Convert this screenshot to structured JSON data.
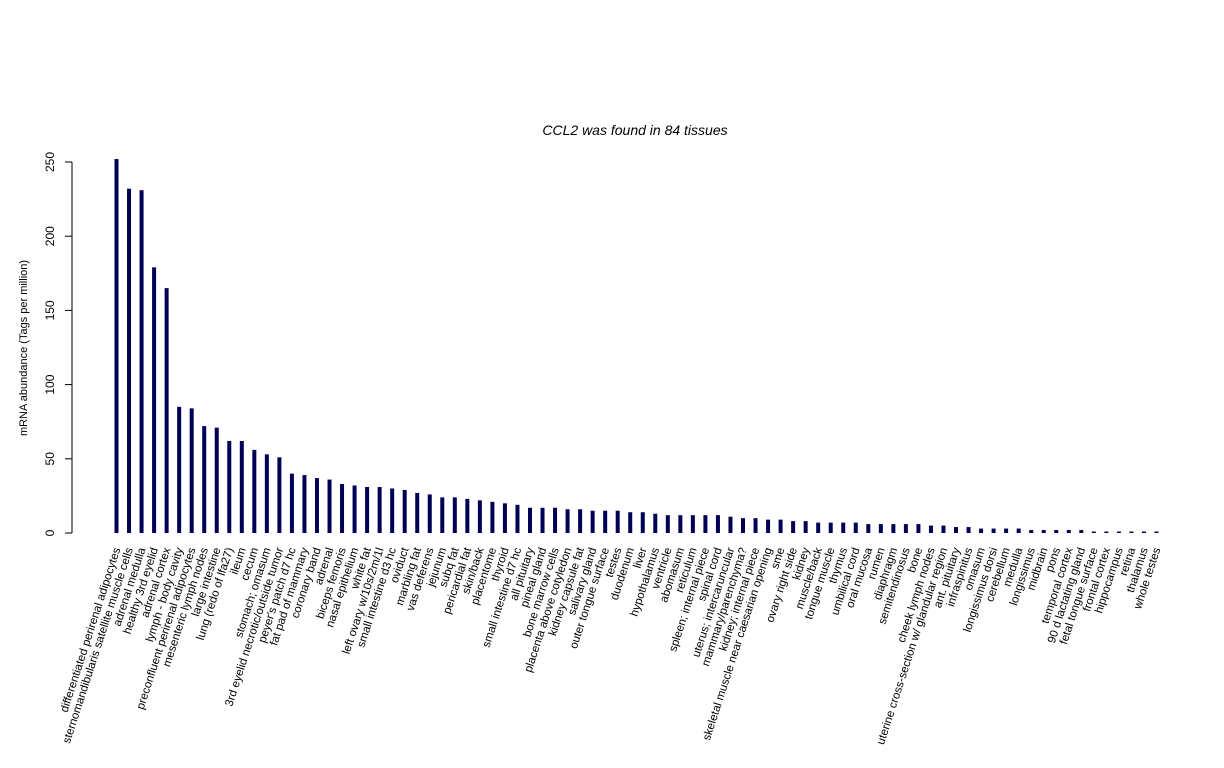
{
  "chart_data": {
    "type": "bar",
    "title": "CCL2  was found in  84  tissues",
    "xlabel": "",
    "ylabel": "mRNA abundance (Tags per million)",
    "ylim": [
      0,
      250
    ],
    "yticks": [
      0,
      50,
      100,
      150,
      200,
      250
    ],
    "grid": false,
    "legend": "none",
    "bar_color": "#000055",
    "categories": [
      "differentiated perirenal adipocytes",
      "sternomandibularis satellite muscle cells",
      "adrenal medulla",
      "healthy 3rd eyelid",
      "adrenal cortex",
      "lymph - body cavity",
      "preconfluent perirenal adipocytes",
      "mesenteric lymph nodes",
      "large intestine",
      "lung (redo of lfa27)",
      "ileum",
      "cecum",
      "stomach; omasum",
      "3rd eyelid necrotic/outside tumor",
      "peyer's patch d7 hc",
      "fat pad of mammary",
      "coronary band",
      "adrenal",
      "biceps femoris",
      "nasal epithelium",
      "white fat",
      "left ovary w/10s/2m/1l",
      "small intestine d3 hc",
      "oviduct",
      "marbling fat",
      "vas deferens",
      "jejunum",
      "subq fat",
      "pericardial fat",
      "skin/back",
      "placentome",
      "thyroid",
      "small intestine d7 hc",
      "all pituitary",
      "pineal gland",
      "bone marrow cells",
      "placenta above cotyledon",
      "kidney capsule fat",
      "salivary gland",
      "outer tongue surface",
      "testes",
      "duodenum",
      "liver",
      "hypothalamus",
      "ventricle",
      "abomasum",
      "reticulum",
      "spleen; internal piece",
      "spinal cord",
      "uterus; intercaruncular",
      "mammary/parenchyma?",
      "kidney; internal piece",
      "skeletal muscle near caesarian opening",
      "sme",
      "ovary right side",
      "kidney",
      "muscle/back",
      "tongue muscle",
      "thymus",
      "umbilical cord",
      "oral mucosa",
      "rumen",
      "diaphragm",
      "semitendinosus",
      "bone",
      "cheek lymph nodes",
      "uterine cross-section w/ glandular region",
      "ant. pituitary",
      "infraspinitus",
      "omasum",
      "longissimus dorsi",
      "cerebellum",
      "medulla",
      "longissimus",
      "midbrain",
      "pons",
      "temporal cortex",
      "90 d lactating gland",
      "fetal tongue surface",
      "frontal cortex",
      "hippocampus",
      "retina",
      "thalamus",
      "whole testes"
    ],
    "values": [
      252,
      232,
      231,
      179,
      165,
      85,
      84,
      72,
      71,
      62,
      62,
      56,
      53,
      51,
      40,
      39,
      37,
      36,
      33,
      32,
      31,
      31,
      30,
      29,
      27,
      26,
      24,
      24,
      23,
      22,
      21,
      20,
      19,
      17,
      17,
      17,
      16,
      16,
      15,
      15,
      15,
      14,
      14,
      13,
      12,
      12,
      12,
      12,
      12,
      11,
      10,
      10,
      9,
      9,
      8,
      8,
      7,
      7,
      7,
      7,
      6,
      6,
      6,
      6,
      6,
      5,
      5,
      4,
      4,
      3,
      3,
      3,
      3,
      2,
      2,
      2,
      2,
      2,
      1,
      1,
      1,
      1,
      1,
      1
    ]
  }
}
